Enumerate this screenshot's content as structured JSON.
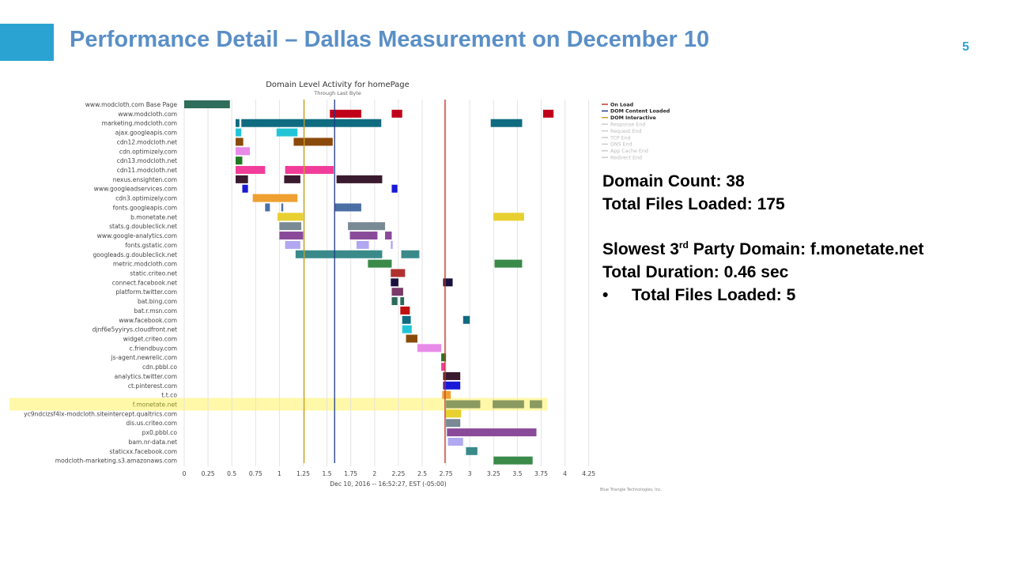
{
  "slide": {
    "title": "Performance Detail – Dallas Measurement on December 10",
    "number": "5"
  },
  "info": {
    "domain_count": "Domain Count: 38",
    "total_files": "Total Files Loaded: 175",
    "slowest_pre": "Slowest 3",
    "slowest_sup": "rd",
    "slowest_post": " Party Domain: f.monetate.net",
    "duration": "Total Duration: 0.46 sec",
    "bullet": "•",
    "files_loaded": "Total Files Loaded: 5"
  },
  "chart_data": {
    "type": "gantt",
    "title": "Domain Level Activity for homePage",
    "subtitle": "Through Last Byte",
    "xlabel": "Dec 10, 2016 -- 16:52:27, EST (-05:00)",
    "credit": "Blue Triangle Technologies, Inc.",
    "xlim": [
      0,
      4.25
    ],
    "xticks": [
      0,
      0.25,
      0.5,
      0.75,
      1,
      1.25,
      1.5,
      1.75,
      2,
      2.25,
      2.5,
      2.75,
      3,
      3.25,
      3.5,
      3.75,
      4,
      4.25
    ],
    "xtick_labels": [
      "0",
      "0.25",
      "0.5",
      "0.75",
      "1",
      "1.25",
      "1.5",
      "1.75",
      "2",
      "2.25",
      "2.5",
      "2.75",
      "3",
      "3.25",
      "3.5",
      "3.75",
      "4",
      "4.25"
    ],
    "grid": true,
    "legend_position": "top-right",
    "markers": [
      {
        "name": "On Load",
        "x": 2.74,
        "color": "#c0392b"
      },
      {
        "name": "DOM Content Loaded",
        "x": 1.58,
        "color": "#1f3a8a"
      },
      {
        "name": "DOM Interactive",
        "x": 1.26,
        "color": "#c9a227"
      }
    ],
    "legend_inactive": [
      "Response End",
      "Request End",
      "TCP End",
      "DNS End",
      "App Cache End",
      "Redirect End"
    ],
    "highlight": "f.monetate.net",
    "rows": [
      {
        "domain": "www.modcloth.com Base Page",
        "color": "#2e6e5a",
        "segments": [
          [
            0,
            0.48
          ]
        ]
      },
      {
        "domain": "www.modcloth.com",
        "color": "#c0001a",
        "segments": [
          [
            1.53,
            1.86
          ],
          [
            2.18,
            2.29
          ],
          [
            3.77,
            3.88
          ]
        ]
      },
      {
        "domain": "marketing.modcloth.com",
        "color": "#0f6b80",
        "segments": [
          [
            0.54,
            0.58
          ],
          [
            0.6,
            2.07
          ],
          [
            3.22,
            3.55
          ]
        ]
      },
      {
        "domain": "ajax.googleapis.com",
        "color": "#22c5d8",
        "segments": [
          [
            0.54,
            0.6
          ],
          [
            0.97,
            1.19
          ]
        ]
      },
      {
        "domain": "cdn12.modcloth.net",
        "color": "#8a4a0a",
        "segments": [
          [
            0.54,
            0.62
          ],
          [
            1.15,
            1.56
          ]
        ]
      },
      {
        "domain": "cdn.optimizely.com",
        "color": "#e88ae8",
        "segments": [
          [
            0.54,
            0.69
          ]
        ]
      },
      {
        "domain": "cdn13.modcloth.net",
        "color": "#1f7a1f",
        "segments": [
          [
            0.54,
            0.61
          ]
        ]
      },
      {
        "domain": "cdn11.modcloth.net",
        "color": "#f23c9a",
        "segments": [
          [
            0.54,
            0.85
          ],
          [
            1.06,
            1.57
          ]
        ]
      },
      {
        "domain": "nexus.ensighten.com",
        "color": "#3a1a2e",
        "segments": [
          [
            0.54,
            0.67
          ],
          [
            1.05,
            1.22
          ],
          [
            1.6,
            2.08
          ]
        ]
      },
      {
        "domain": "www.googleadservices.com",
        "color": "#1818d8",
        "segments": [
          [
            0.61,
            0.67
          ],
          [
            2.18,
            2.24
          ]
        ]
      },
      {
        "domain": "cdn3.optimizely.com",
        "color": "#f0a030",
        "segments": [
          [
            0.72,
            1.19
          ]
        ]
      },
      {
        "domain": "fonts.googleapis.com",
        "color": "#4a6fa5",
        "segments": [
          [
            0.85,
            0.9
          ],
          [
            1.02,
            1.04
          ],
          [
            1.58,
            1.86
          ]
        ]
      },
      {
        "domain": "b.monetate.net",
        "color": "#e8d030",
        "segments": [
          [
            0.98,
            1.25
          ],
          [
            3.25,
            3.57
          ]
        ]
      },
      {
        "domain": "stats.g.doubleclick.net",
        "color": "#7a8a94",
        "segments": [
          [
            1.0,
            1.23
          ],
          [
            1.72,
            2.11
          ]
        ]
      },
      {
        "domain": "www.google-analytics.com",
        "color": "#8a4a9a",
        "segments": [
          [
            1.0,
            1.25
          ],
          [
            1.74,
            2.03
          ],
          [
            2.11,
            2.18
          ]
        ]
      },
      {
        "domain": "fonts.gstatic.com",
        "color": "#b0a8f0",
        "segments": [
          [
            1.06,
            1.22
          ],
          [
            1.81,
            1.94
          ],
          [
            2.17,
            2.19
          ]
        ]
      },
      {
        "domain": "googleads.g.doubleclick.net",
        "color": "#3a8a8a",
        "segments": [
          [
            1.17,
            2.08
          ],
          [
            2.28,
            2.47
          ]
        ]
      },
      {
        "domain": "metric.modcloth.com",
        "color": "#3a8a4a",
        "segments": [
          [
            1.93,
            2.18
          ],
          [
            3.26,
            3.55
          ]
        ]
      },
      {
        "domain": "static.criteo.net",
        "color": "#b03030",
        "segments": [
          [
            2.17,
            2.32
          ]
        ]
      },
      {
        "domain": "connect.facebook.net",
        "color": "#1a1040",
        "segments": [
          [
            2.17,
            2.25
          ],
          [
            2.72,
            2.82
          ]
        ]
      },
      {
        "domain": "platform.twitter.com",
        "color": "#7a3a6a",
        "segments": [
          [
            2.18,
            2.3
          ]
        ]
      },
      {
        "domain": "bat.bing.com",
        "color": "#2a6a5a",
        "segments": [
          [
            2.18,
            2.24
          ],
          [
            2.27,
            2.31
          ]
        ]
      },
      {
        "domain": "bat.r.msn.com",
        "color": "#c01010",
        "segments": [
          [
            2.27,
            2.37
          ]
        ]
      },
      {
        "domain": "www.facebook.com",
        "color": "#0f6b80",
        "segments": [
          [
            2.29,
            2.38
          ],
          [
            2.93,
            3.0
          ]
        ]
      },
      {
        "domain": "djnf6e5yyirys.cloudfront.net",
        "color": "#22c5d8",
        "segments": [
          [
            2.29,
            2.39
          ]
        ]
      },
      {
        "domain": "widget.criteo.com",
        "color": "#8a4a0a",
        "segments": [
          [
            2.33,
            2.45
          ]
        ]
      },
      {
        "domain": "c.friendbuy.com",
        "color": "#e88ae8",
        "segments": [
          [
            2.45,
            2.7
          ]
        ]
      },
      {
        "domain": "js-agent.newrelic.com",
        "color": "#1f7a1f",
        "segments": [
          [
            2.7,
            2.75
          ]
        ]
      },
      {
        "domain": "cdn.pbbl.co",
        "color": "#f23c9a",
        "segments": [
          [
            2.7,
            2.74
          ]
        ]
      },
      {
        "domain": "analytics.twitter.com",
        "color": "#3a1a2e",
        "segments": [
          [
            2.72,
            2.9
          ]
        ]
      },
      {
        "domain": "ct.pinterest.com",
        "color": "#1818d8",
        "segments": [
          [
            2.72,
            2.9
          ]
        ]
      },
      {
        "domain": "t.t.co",
        "color": "#f0a030",
        "segments": [
          [
            2.71,
            2.8
          ]
        ]
      },
      {
        "domain": "f.monetate.net",
        "color": "#8a9a60",
        "segments": [
          [
            2.75,
            3.11
          ],
          [
            3.24,
            3.57
          ],
          [
            3.63,
            3.76
          ]
        ]
      },
      {
        "domain": "yc9ndcizsf4lx-modcloth.siteintercept.qualtrics.com",
        "color": "#e8d030",
        "segments": [
          [
            2.74,
            2.91
          ]
        ]
      },
      {
        "domain": "dis.us.criteo.com",
        "color": "#7a8a94",
        "segments": [
          [
            2.75,
            2.9
          ]
        ]
      },
      {
        "domain": "px0.pbbl.co",
        "color": "#8a4a9a",
        "segments": [
          [
            2.76,
            3.7
          ]
        ]
      },
      {
        "domain": "bam.nr-data.net",
        "color": "#b0a8f0",
        "segments": [
          [
            2.77,
            2.93
          ]
        ]
      },
      {
        "domain": "staticxx.facebook.com",
        "color": "#3a8a8a",
        "segments": [
          [
            2.96,
            3.08
          ]
        ]
      },
      {
        "domain": "modcloth-marketing.s3.amazonaws.com",
        "color": "#3a8a4a",
        "segments": [
          [
            3.25,
            3.66
          ]
        ]
      }
    ]
  }
}
